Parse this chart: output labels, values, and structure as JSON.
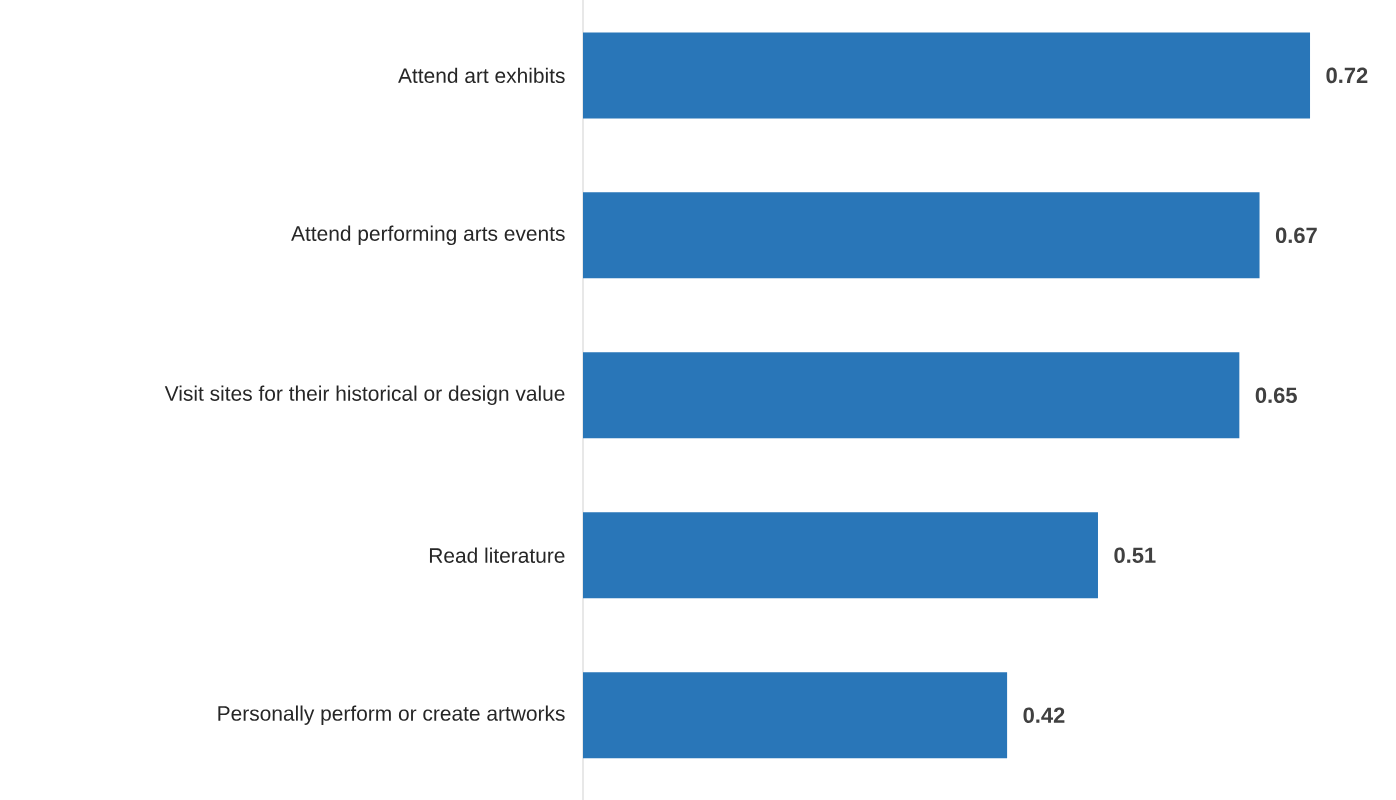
{
  "chart_data": {
    "type": "bar",
    "orientation": "horizontal",
    "categories": [
      "Attend art exhibits",
      "Attend performing arts events",
      "Visit sites for their historical or design value",
      "Read literature",
      "Personally perform or create artworks"
    ],
    "values": [
      0.72,
      0.67,
      0.65,
      0.51,
      0.42
    ],
    "color": "#2976b8",
    "data_labels": true,
    "tick_labels": "y"
  }
}
